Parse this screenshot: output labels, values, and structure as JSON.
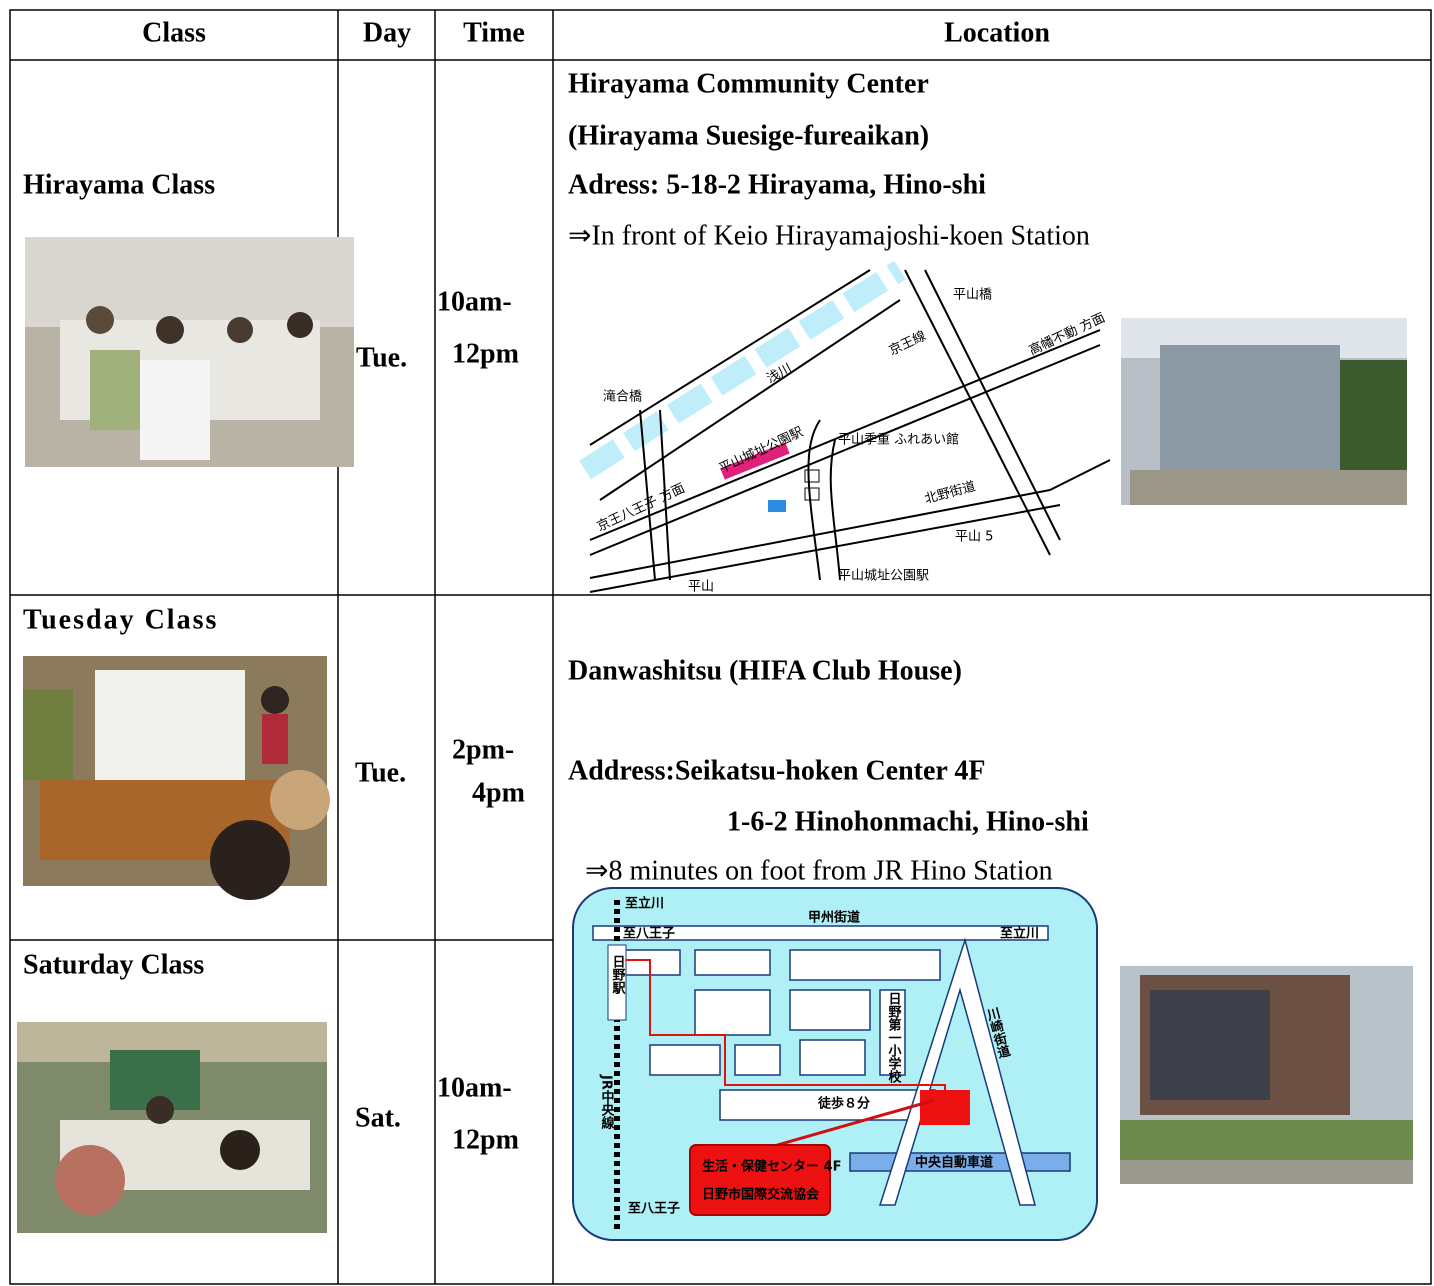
{
  "table": {
    "header": [
      "Class",
      "Day",
      "Time",
      "Location"
    ],
    "rows": [
      {
        "class": "Hirayama Class",
        "day": "Tue.",
        "time": [
          "10am-",
          "12pm"
        ],
        "location": [
          "Hirayama Community Center",
          "(Hirayama Suesige-fureaikan)",
          "Adress: 5-18-2 Hirayama, Hino-shi",
          "⇒In front of Keio Hirayamajoshi-koen Station"
        ]
      },
      {
        "class": "Tuesday Class",
        "day": "Tue.",
        "time": [
          "2pm-",
          "4pm"
        ],
        "location": [
          "Danwashitsu (HIFA Club House)",
          "Address:Seikatsu-hoken Center 4F",
          "1-6-2 Hinohonmachi, Hino-shi",
          "⇒8 minutes on foot from JR Hino Station"
        ]
      },
      {
        "class": "Saturday Class",
        "day": "Sat.",
        "time": [
          "10am-",
          "12pm"
        ]
      }
    ]
  },
  "map1": {
    "labels": [
      "平山橋",
      "浅川",
      "京王線",
      "高幡不動 方面",
      "滝合橋",
      "平山城址公園駅",
      "平山季重 ふれあい館",
      "京王八王子 方面",
      "北野街道",
      "平山 5",
      "平山城址公園駅",
      "平山"
    ]
  },
  "map2": {
    "labels": [
      "至立川",
      "甲州街道",
      "至八王子",
      "至立川",
      "日野駅",
      "日野第一小学校",
      "川崎街道",
      "JR中央線",
      "徒歩８分",
      "中央自動車道",
      "生活・保健センター 4F",
      "日野市国際交流協会",
      "至八王子"
    ]
  }
}
